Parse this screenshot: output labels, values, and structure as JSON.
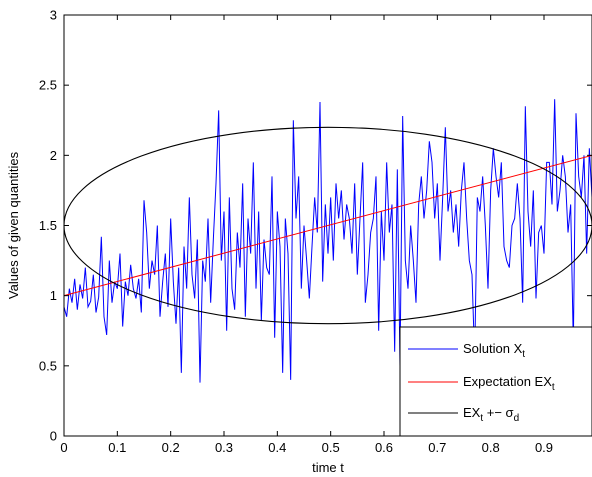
{
  "chart_data": {
    "type": "line",
    "xlabel": "time t",
    "ylabel": "Values of given quantities",
    "xlim": [
      0,
      0.99
    ],
    "ylim": [
      0,
      3
    ],
    "x_ticks": [
      "0",
      "0.1",
      "0.2",
      "0.3",
      "0.4",
      "0.5",
      "0.6",
      "0.7",
      "0.8",
      "0.9"
    ],
    "y_ticks": [
      "0",
      "0.5",
      "1",
      "1.5",
      "2",
      "2.5",
      "3"
    ],
    "grid": false,
    "legend_placement": "bottom-right",
    "series": [
      {
        "name": "Solution X",
        "name_subscript": "t",
        "color": "#0000ff",
        "x_start": 0,
        "x_step": 0.005,
        "values": [
          0.92,
          0.85,
          1.05,
          0.95,
          1.12,
          0.9,
          1.08,
          0.98,
          1.2,
          0.92,
          0.96,
          1.15,
          0.88,
          0.99,
          1.42,
          0.85,
          0.72,
          1.25,
          0.95,
          1.1,
          1.05,
          1.3,
          0.78,
          1.1,
          1.0,
          1.22,
          1.05,
          0.98,
          1.12,
          0.88,
          1.68,
          1.45,
          1.05,
          1.25,
          1.15,
          1.5,
          0.85,
          1.1,
          1.3,
          0.92,
          1.55,
          1.1,
          0.8,
          1.2,
          0.45,
          1.35,
          1.05,
          1.7,
          1.15,
          0.98,
          1.4,
          0.38,
          1.25,
          1.1,
          1.55,
          0.95,
          1.4,
          1.8,
          2.32,
          1.25,
          1.6,
          0.75,
          1.7,
          1.05,
          0.9,
          1.45,
          1.2,
          1.8,
          0.85,
          1.55,
          1.3,
          1.95,
          1.05,
          1.6,
          0.82,
          1.4,
          1.2,
          1.15,
          1.85,
          0.7,
          1.6,
          1.35,
          0.45,
          1.55,
          1.3,
          0.4,
          2.25,
          1.55,
          1.85,
          1.05,
          1.5,
          1.25,
          0.98,
          1.35,
          1.7,
          1.45,
          2.38,
          1.1,
          1.65,
          1.3,
          1.7,
          1.25,
          1.8,
          1.55,
          1.75,
          1.4,
          1.65,
          1.55,
          1.3,
          1.8,
          1.15,
          1.55,
          1.95,
          0.95,
          1.15,
          1.45,
          1.55,
          1.85,
          0.75,
          1.6,
          1.25,
          1.95,
          1.45,
          1.65,
          0.6,
          1.9,
          0.5,
          2.28,
          1.25,
          1.05,
          1.5,
          1.25,
          0.95,
          1.65,
          1.85,
          1.55,
          1.75,
          2.1,
          1.95,
          1.55,
          1.8,
          1.25,
          1.7,
          2.2,
          1.6,
          1.75,
          1.45,
          1.65,
          1.35,
          1.75,
          1.95,
          1.55,
          1.25,
          1.15,
          0.55,
          1.7,
          1.6,
          1.85,
          1.5,
          1.05,
          1.75,
          2.05,
          1.85,
          1.7,
          1.95,
          1.35,
          1.25,
          1.2,
          1.5,
          1.55,
          1.8,
          1.55,
          0.95,
          2.35,
          1.6,
          1.35,
          1.75,
          0.98,
          1.45,
          1.5,
          1.3,
          1.95,
          1.95,
          1.65,
          2.4,
          1.6,
          1.75,
          2.0,
          1.85,
          1.45,
          1.65,
          0.65,
          2.3,
          1.85,
          1.7,
          2.0,
          1.3,
          2.05,
          1.7,
          1.6,
          2.55,
          1.6,
          2.05,
          1.7,
          0.9,
          2.2,
          1.45,
          1.95,
          2.4,
          1.25,
          2.15,
          1.1,
          1.8,
          2.3,
          2.55,
          1.65,
          1.9,
          1.55,
          1.9,
          1.3,
          2.0,
          1.35,
          1.9,
          2.3,
          1.2,
          1.85,
          2.2,
          1.4,
          2.15,
          1.55,
          2.2,
          1.9,
          1.9,
          2.15,
          1.85,
          2.0,
          1.6,
          2.2,
          2.0,
          1.85,
          2.1,
          2.05,
          1.8,
          2.1,
          1.9,
          2.2,
          1.6,
          2.35,
          2.0,
          2.4,
          2.25,
          2.5,
          1.95,
          2.1,
          1.9,
          1.85
        ]
      },
      {
        "name": "Expectation  EX",
        "name_subscript": "t",
        "color": "#ff0000",
        "x": [
          0,
          0.99
        ],
        "values": [
          1.0,
          2.0
        ]
      },
      {
        "name": "EX",
        "name_subscript": "t",
        "name_suffix": " +− ",
        "name_sigma": "σ",
        "name_sigma_subscript": "d",
        "color": "#000000",
        "shape": "ellipse",
        "center": [
          0.495,
          1.5
        ],
        "x_extent": [
          0,
          0.99
        ],
        "y_extent": [
          0.8,
          2.2
        ]
      }
    ]
  }
}
